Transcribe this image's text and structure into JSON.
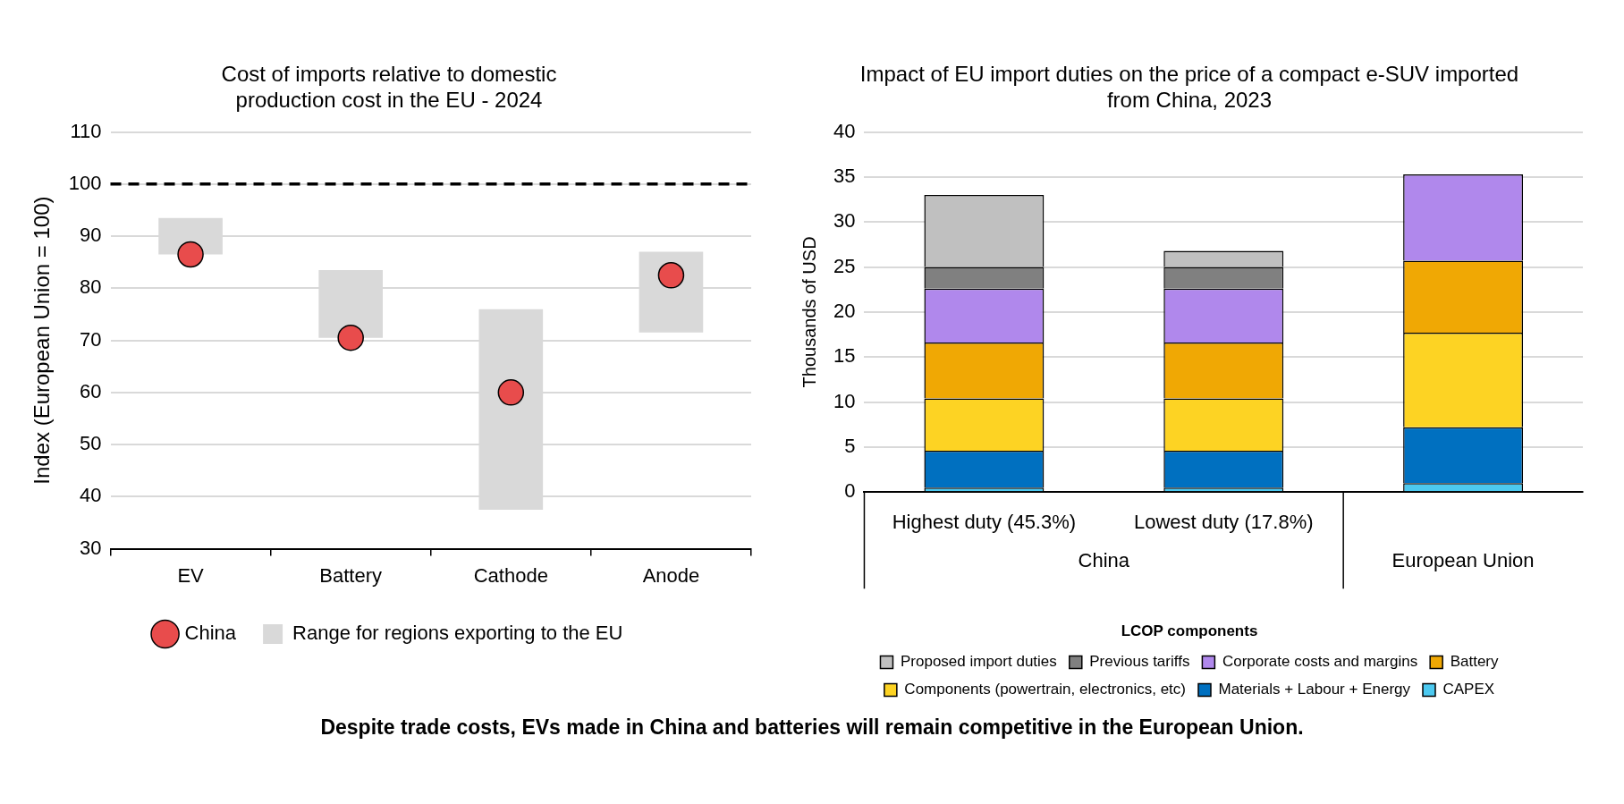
{
  "chart_data": [
    {
      "type": "bar",
      "title": "Cost of imports relative to domestic production cost in the EU - 2024",
      "ylabel": "Index (European Union = 100)",
      "categories": [
        "EV",
        "Battery",
        "Cathode",
        "Anode"
      ],
      "series": [
        {
          "name": "Range for regions exporting to the EU",
          "type": "bar",
          "color": "#d9d9d9",
          "base": [
            86.5,
            70.5,
            37.5,
            71.5
          ],
          "values": [
            7,
            13,
            38.5,
            15.5
          ]
        },
        {
          "name": "China",
          "type": "scatter",
          "color": "#e84c4c",
          "x": [
            "EV",
            "Battery",
            "Cathode",
            "Anode"
          ],
          "values": [
            86.5,
            70.5,
            60,
            82.5
          ]
        }
      ],
      "ylim": [
        30,
        110
      ],
      "yticks": [
        30,
        40,
        50,
        60,
        70,
        80,
        90,
        100,
        110
      ],
      "grid": "y",
      "legend": "bottom",
      "marker": "circle",
      "ref_lines": [
        {
          "axis": "y",
          "value": 100,
          "color": "#000000",
          "line_style": "dashed"
        }
      ],
      "annotations": [
        "Despite trade costs, EVs made in China and batteries will remain competitive in the European Union."
      ]
    },
    {
      "type": "bar",
      "title": "Impact of EU import duties on the price of a compact e-SUV imported from China, 2023",
      "ylabel": "Thousands of USD",
      "legend_title": "LCOP components",
      "categories": [
        "Highest duty (45.3%)",
        "Lowest duty (17.8%)",
        null
      ],
      "stacked": true,
      "series": [
        {
          "name": "CAPEX",
          "color": "#4cc9f0",
          "values": [
            0.5,
            0.5,
            1.0
          ]
        },
        {
          "name": "Materials + Labour + Energy",
          "color": "#0070c0",
          "values": [
            4.1,
            4.1,
            6.2
          ]
        },
        {
          "name": "Components (powertrain, electronics, etc)",
          "color": "#fdd323",
          "values": [
            5.8,
            5.8,
            10.5
          ]
        },
        {
          "name": "Battery",
          "color": "#f0a804",
          "values": [
            6.2,
            6.2,
            8.0
          ]
        },
        {
          "name": "Corporate costs and margins",
          "color": "#b088ec",
          "values": [
            6.0,
            6.0,
            9.6
          ]
        },
        {
          "name": "Previous tariffs",
          "color": "#808080",
          "values": [
            2.4,
            2.4,
            null
          ]
        },
        {
          "name": "Proposed import duties",
          "color": "#c0c0c0",
          "values": [
            8.0,
            1.8,
            null
          ]
        }
      ],
      "ylim": [
        0,
        40
      ],
      "yticks": [
        0,
        5,
        10,
        15,
        20,
        25,
        30,
        35,
        40
      ],
      "grid": "y",
      "legend": "bottom",
      "annotations": [
        "China",
        "European Union"
      ]
    }
  ]
}
